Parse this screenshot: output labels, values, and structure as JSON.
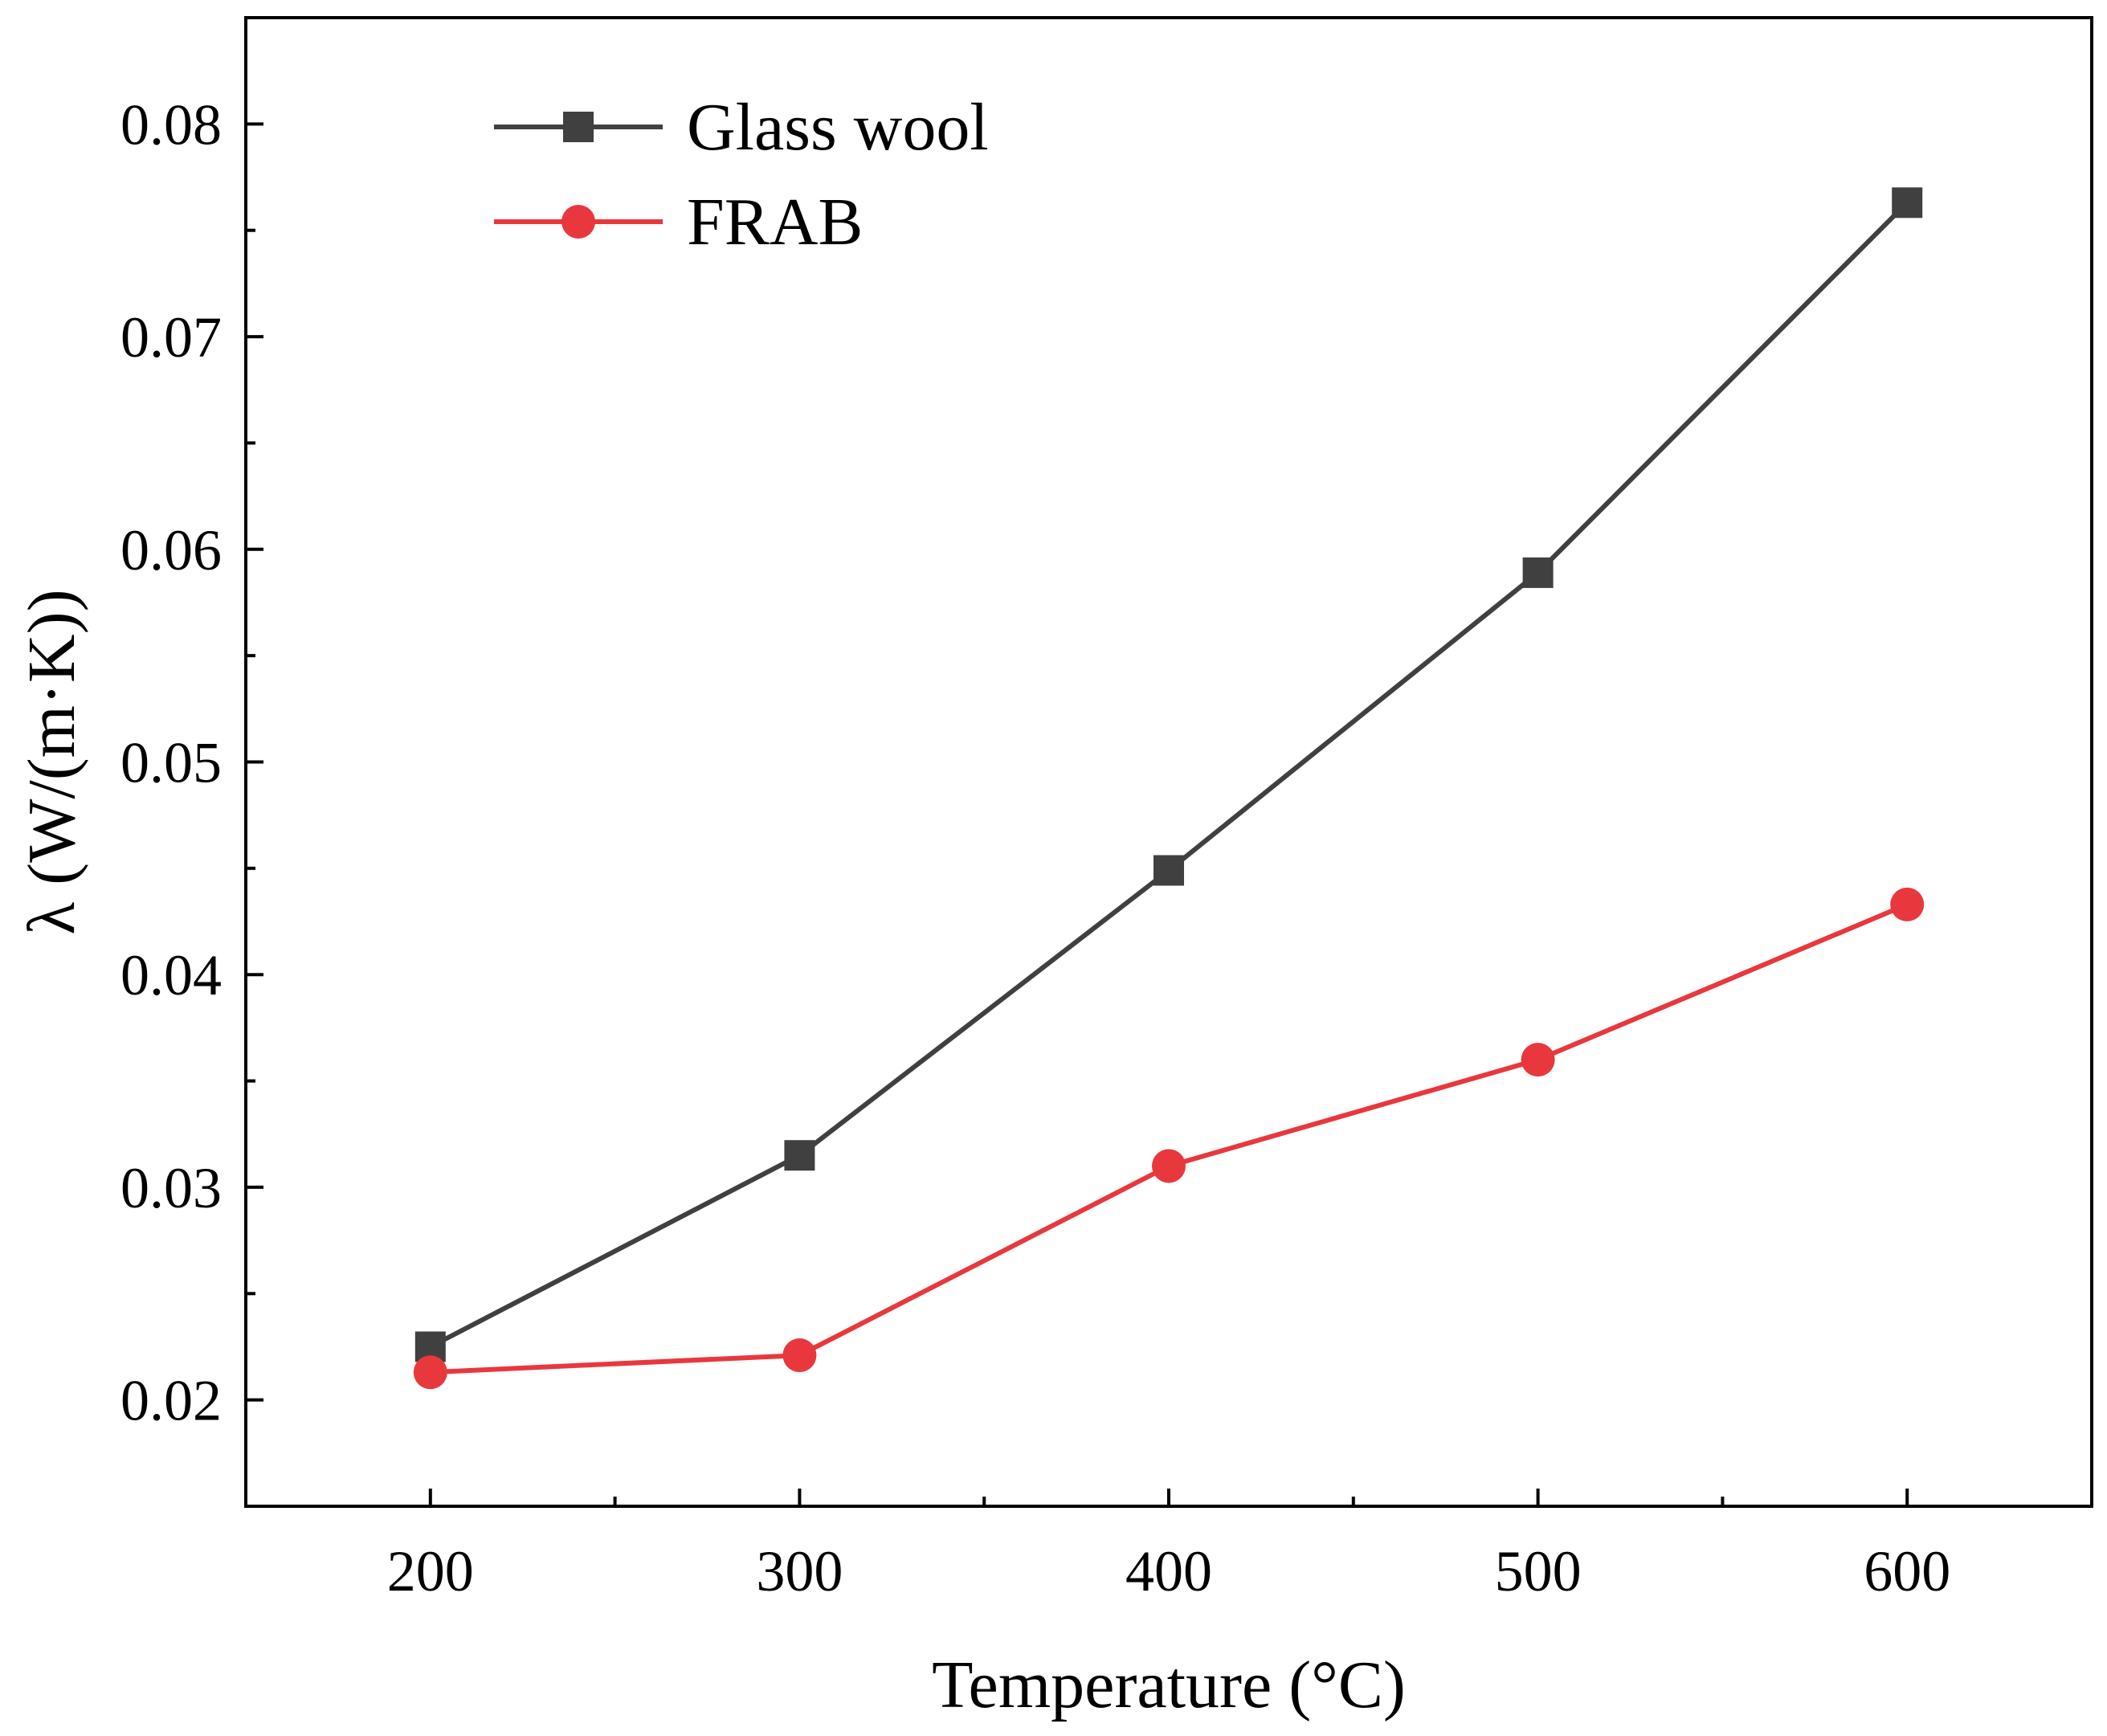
{
  "chart_data": {
    "type": "line",
    "title": "",
    "xlabel": "Temperature (°C)",
    "ylabel": "λ (W/(m·K))",
    "x": [
      200,
      300,
      400,
      500,
      600
    ],
    "xlim": [
      150,
      650
    ],
    "ylim": [
      0.015,
      0.085
    ],
    "xticks": [
      200,
      300,
      400,
      500,
      600
    ],
    "xtick_labels": [
      "200",
      "300",
      "400",
      "500",
      "600"
    ],
    "xminor": [
      250,
      350,
      450,
      550
    ],
    "yticks": [
      0.02,
      0.03,
      0.04,
      0.05,
      0.06,
      0.07,
      0.08
    ],
    "ytick_labels": [
      "0.02",
      "0.03",
      "0.04",
      "0.05",
      "0.06",
      "0.07",
      "0.08"
    ],
    "yminor": [
      0.025,
      0.035,
      0.045,
      0.055,
      0.065,
      0.075
    ],
    "grid": false,
    "legend_position": "top-left",
    "series": [
      {
        "name": "Glass wool",
        "marker": "square",
        "color": "#404040",
        "values": [
          0.0225,
          0.0315,
          0.0449,
          0.0589,
          0.0763
        ]
      },
      {
        "name": "FRAB",
        "marker": "circle",
        "color": "#e8383d",
        "values": [
          0.0213,
          0.0221,
          0.031,
          0.036,
          0.0433
        ]
      }
    ]
  }
}
